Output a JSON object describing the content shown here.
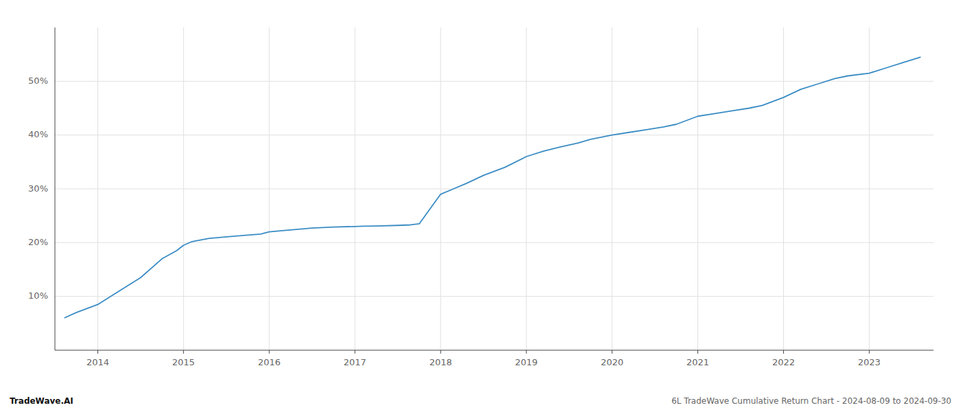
{
  "chart_data": {
    "type": "line",
    "x": [
      2013.61,
      2013.75,
      2014.0,
      2014.2,
      2014.5,
      2014.75,
      2014.92,
      2015.0,
      2015.1,
      2015.3,
      2015.6,
      2015.9,
      2016.0,
      2016.2,
      2016.5,
      2016.75,
      2017.0,
      2017.1,
      2017.25,
      2017.5,
      2017.65,
      2017.75,
      2018.0,
      2018.15,
      2018.3,
      2018.5,
      2018.75,
      2019.0,
      2019.2,
      2019.4,
      2019.6,
      2019.75,
      2020.0,
      2020.2,
      2020.4,
      2020.6,
      2020.75,
      2021.0,
      2021.2,
      2021.4,
      2021.6,
      2021.75,
      2022.0,
      2022.2,
      2022.4,
      2022.6,
      2022.75,
      2023.0,
      2023.2,
      2023.4,
      2023.6
    ],
    "values": [
      6.0,
      7.0,
      8.5,
      10.5,
      13.5,
      17.0,
      18.5,
      19.5,
      20.2,
      20.8,
      21.2,
      21.6,
      22.0,
      22.3,
      22.7,
      22.9,
      23.0,
      23.05,
      23.1,
      23.2,
      23.3,
      23.5,
      29.0,
      30.0,
      31.0,
      32.5,
      34.0,
      36.0,
      37.0,
      37.8,
      38.5,
      39.2,
      40.0,
      40.5,
      41.0,
      41.5,
      42.0,
      43.5,
      44.0,
      44.5,
      45.0,
      45.5,
      47.0,
      48.5,
      49.5,
      50.5,
      51.0,
      51.5,
      52.5,
      53.5,
      54.5
    ],
    "color": "#3a8cc4",
    "xlim": [
      2013.5,
      2023.75
    ],
    "ylim": [
      0,
      60
    ],
    "xticks": [
      2014,
      2015,
      2016,
      2017,
      2018,
      2019,
      2020,
      2021,
      2022,
      2023
    ],
    "yticks": [
      {
        "value": 10,
        "label": "10%"
      },
      {
        "value": 20,
        "label": "20%"
      },
      {
        "value": 30,
        "label": "30%"
      },
      {
        "value": 40,
        "label": "40%"
      },
      {
        "value": 50,
        "label": "50%"
      }
    ],
    "grid": true,
    "annotations": [
      "TradeWave.AI",
      "6L TradeWave Cumulative Return Chart - 2024-08-09 to 2024-09-30"
    ]
  }
}
